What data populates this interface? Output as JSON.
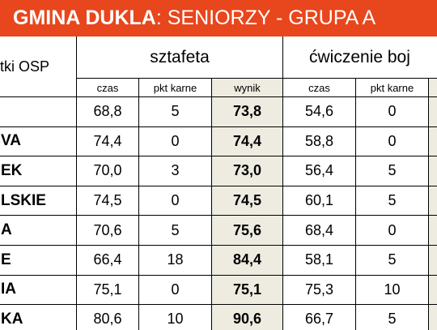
{
  "header": {
    "title_bold": "GMINA DUKLA",
    "title_rest": ": SENIORZY - GRUPA A"
  },
  "table": {
    "columns": [
      "tki OSP",
      "sztafeta",
      "ćwiczenie boj"
    ],
    "subcolumns": [
      "czas",
      "pkt karne",
      "wynik",
      "czas",
      "pkt karne"
    ],
    "rows": [
      {
        "cells": [
          "68,8",
          "5",
          "73,8",
          "54,6",
          "0"
        ]
      },
      {
        "name": "VA",
        "cells": [
          "74,4",
          "0",
          "74,4",
          "58,8",
          "0"
        ]
      },
      {
        "name": "EK",
        "cells": [
          "70,0",
          "3",
          "73,0",
          "56,4",
          "5"
        ]
      },
      {
        "name": "LSKIE",
        "cells": [
          "74,5",
          "0",
          "74,5",
          "60,1",
          "5"
        ]
      },
      {
        "name": "A",
        "cells": [
          "70,6",
          "5",
          "75,6",
          "68,4",
          "0"
        ]
      },
      {
        "name": "E",
        "cells": [
          "66,4",
          "18",
          "84,4",
          "58,1",
          "5"
        ]
      },
      {
        "name": "IA",
        "cells": [
          "75,1",
          "0",
          "75,1",
          "75,3",
          "10"
        ]
      },
      {
        "name": "KA",
        "cells": [
          "80,6",
          "10",
          "90,6",
          "66,7",
          "5"
        ]
      }
    ]
  }
}
